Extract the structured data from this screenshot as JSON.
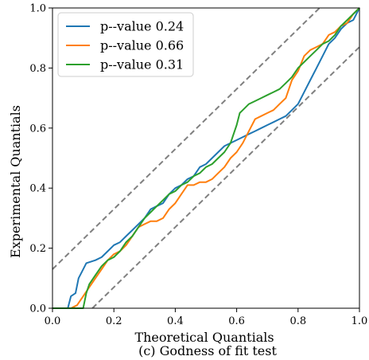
{
  "chart_data": {
    "type": "line",
    "title": "",
    "caption": "(c) Godness of fit test",
    "xlabel": "Theoretical Quantials",
    "ylabel": "Experimental Quantials",
    "xlim": [
      0.0,
      1.0
    ],
    "ylim": [
      0.0,
      1.0
    ],
    "xticks": [
      "0.0",
      "0.2",
      "0.4",
      "0.6",
      "0.8",
      "1.0"
    ],
    "yticks": [
      "0.0",
      "0.2",
      "0.4",
      "0.6",
      "0.8",
      "1.0"
    ],
    "grid": false,
    "legend_position": "top-left",
    "confidence_bands": [
      {
        "x": [
          0.0,
          0.87
        ],
        "y": [
          0.13,
          1.0
        ]
      },
      {
        "x": [
          0.13,
          1.0
        ],
        "y": [
          0.0,
          0.87
        ]
      }
    ],
    "series": [
      {
        "name": "p--value 0.24",
        "color": "#1f77b4",
        "x": [
          0.0,
          0.05,
          0.06,
          0.075,
          0.085,
          0.095,
          0.11,
          0.14,
          0.16,
          0.18,
          0.2,
          0.22,
          0.24,
          0.26,
          0.28,
          0.3,
          0.32,
          0.34,
          0.36,
          0.38,
          0.4,
          0.42,
          0.44,
          0.46,
          0.48,
          0.5,
          0.52,
          0.54,
          0.56,
          0.58,
          0.6,
          0.62,
          0.64,
          0.66,
          0.68,
          0.7,
          0.72,
          0.74,
          0.76,
          0.78,
          0.8,
          0.82,
          0.84,
          0.86,
          0.88,
          0.9,
          0.92,
          0.94,
          0.96,
          0.98,
          1.0
        ],
        "y": [
          0.0,
          0.0,
          0.04,
          0.05,
          0.1,
          0.12,
          0.15,
          0.16,
          0.17,
          0.19,
          0.21,
          0.22,
          0.24,
          0.26,
          0.28,
          0.3,
          0.33,
          0.34,
          0.35,
          0.38,
          0.4,
          0.41,
          0.43,
          0.44,
          0.47,
          0.48,
          0.5,
          0.52,
          0.54,
          0.55,
          0.56,
          0.57,
          0.58,
          0.59,
          0.6,
          0.61,
          0.62,
          0.63,
          0.64,
          0.66,
          0.68,
          0.72,
          0.76,
          0.8,
          0.84,
          0.88,
          0.9,
          0.93,
          0.95,
          0.96,
          1.0
        ]
      },
      {
        "name": "p--value 0.66",
        "color": "#ff7f0e",
        "x": [
          0.0,
          0.06,
          0.08,
          0.1,
          0.12,
          0.14,
          0.16,
          0.18,
          0.2,
          0.22,
          0.24,
          0.26,
          0.28,
          0.3,
          0.32,
          0.34,
          0.36,
          0.38,
          0.4,
          0.42,
          0.44,
          0.46,
          0.48,
          0.5,
          0.52,
          0.54,
          0.56,
          0.58,
          0.6,
          0.62,
          0.64,
          0.66,
          0.68,
          0.7,
          0.72,
          0.74,
          0.76,
          0.78,
          0.8,
          0.82,
          0.84,
          0.86,
          0.88,
          0.9,
          0.92,
          0.94,
          0.96,
          0.98,
          1.0
        ],
        "y": [
          0.0,
          0.0,
          0.01,
          0.04,
          0.07,
          0.1,
          0.13,
          0.16,
          0.18,
          0.19,
          0.21,
          0.24,
          0.27,
          0.28,
          0.29,
          0.29,
          0.3,
          0.33,
          0.35,
          0.38,
          0.41,
          0.41,
          0.42,
          0.42,
          0.43,
          0.45,
          0.47,
          0.5,
          0.52,
          0.55,
          0.59,
          0.63,
          0.64,
          0.65,
          0.66,
          0.68,
          0.7,
          0.76,
          0.79,
          0.84,
          0.86,
          0.87,
          0.88,
          0.91,
          0.92,
          0.94,
          0.95,
          0.98,
          1.0
        ]
      },
      {
        "name": "p--value 0.31",
        "color": "#2ca02c",
        "x": [
          0.0,
          0.1,
          0.11,
          0.12,
          0.14,
          0.16,
          0.18,
          0.2,
          0.22,
          0.24,
          0.26,
          0.28,
          0.3,
          0.32,
          0.34,
          0.36,
          0.38,
          0.4,
          0.42,
          0.44,
          0.46,
          0.48,
          0.5,
          0.52,
          0.54,
          0.56,
          0.58,
          0.6,
          0.61,
          0.62,
          0.64,
          0.66,
          0.68,
          0.7,
          0.72,
          0.74,
          0.76,
          0.78,
          0.8,
          0.82,
          0.84,
          0.86,
          0.88,
          0.9,
          0.92,
          0.94,
          0.96,
          0.98,
          1.0
        ],
        "y": [
          0.0,
          0.0,
          0.05,
          0.08,
          0.11,
          0.14,
          0.16,
          0.17,
          0.19,
          0.22,
          0.24,
          0.27,
          0.3,
          0.32,
          0.34,
          0.36,
          0.38,
          0.39,
          0.41,
          0.42,
          0.44,
          0.45,
          0.47,
          0.48,
          0.5,
          0.52,
          0.55,
          0.61,
          0.65,
          0.66,
          0.68,
          0.69,
          0.7,
          0.71,
          0.72,
          0.73,
          0.75,
          0.77,
          0.8,
          0.82,
          0.84,
          0.86,
          0.88,
          0.89,
          0.91,
          0.94,
          0.96,
          0.98,
          1.0
        ]
      }
    ]
  }
}
